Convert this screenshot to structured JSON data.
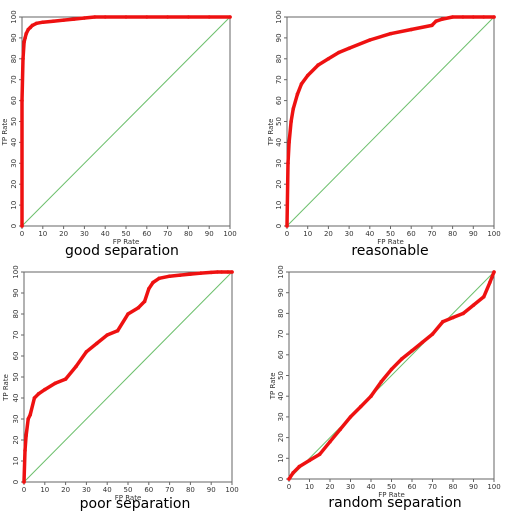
{
  "chart_data": [
    {
      "type": "line",
      "caption": "good separation",
      "xlabel": "FP Rate",
      "ylabel": "TP Rate",
      "xlim": [
        0,
        100
      ],
      "ylim": [
        0,
        100
      ],
      "x_ticks": [
        0,
        10,
        20,
        30,
        40,
        50,
        60,
        70,
        80,
        90,
        100
      ],
      "y_ticks": [
        0,
        10,
        20,
        30,
        40,
        50,
        60,
        70,
        80,
        90,
        100
      ],
      "diagonal_color": "#6cbf6c",
      "series": [
        {
          "color": "#ee1111",
          "x": [
            0,
            0,
            0.5,
            1,
            1.5,
            2,
            3,
            4,
            5,
            7,
            10,
            15,
            20,
            25,
            30,
            35,
            40,
            50,
            60,
            70,
            80,
            90,
            100
          ],
          "y": [
            0,
            60,
            80,
            88,
            90,
            92,
            94,
            95,
            96,
            97,
            97.5,
            98,
            98.5,
            99,
            99.5,
            100,
            100,
            100,
            100,
            100,
            100,
            100,
            100
          ]
        }
      ]
    },
    {
      "type": "line",
      "caption": "reasonable",
      "xlabel": "FP Rate",
      "ylabel": "TP Rate",
      "xlim": [
        0,
        100
      ],
      "ylim": [
        0,
        100
      ],
      "x_ticks": [
        0,
        10,
        20,
        30,
        40,
        50,
        60,
        70,
        80,
        90,
        100
      ],
      "y_ticks": [
        0,
        10,
        20,
        30,
        40,
        50,
        60,
        70,
        80,
        90,
        100
      ],
      "diagonal_color": "#6cbf6c",
      "series": [
        {
          "color": "#ee1111",
          "x": [
            0,
            0.5,
            1,
            2,
            3,
            5,
            7,
            10,
            15,
            20,
            25,
            30,
            40,
            50,
            60,
            70,
            72,
            75,
            80,
            85,
            90,
            95,
            100
          ],
          "y": [
            0,
            30,
            40,
            50,
            56,
            63,
            68,
            72,
            77,
            80,
            83,
            85,
            89,
            92,
            94,
            96,
            98,
            99,
            100,
            100,
            100,
            100,
            100
          ]
        }
      ]
    },
    {
      "type": "line",
      "caption": "poor separation",
      "xlabel": "FP Rate",
      "ylabel": "TP Rate",
      "xlim": [
        0,
        100
      ],
      "ylim": [
        0,
        100
      ],
      "x_ticks": [
        0,
        10,
        20,
        30,
        40,
        50,
        60,
        70,
        80,
        90,
        100
      ],
      "y_ticks": [
        0,
        10,
        20,
        30,
        40,
        50,
        60,
        70,
        80,
        90,
        100
      ],
      "diagonal_color": "#6cbf6c",
      "series": [
        {
          "color": "#ee1111",
          "x": [
            0,
            0.5,
            1,
            2,
            3,
            5,
            7,
            10,
            15,
            20,
            25,
            30,
            35,
            40,
            45,
            50,
            55,
            58,
            60,
            62,
            65,
            70,
            75,
            80,
            85,
            90,
            93,
            95,
            98,
            100
          ],
          "y": [
            0,
            15,
            22,
            30,
            32,
            40,
            42,
            44,
            47,
            49,
            55,
            62,
            66,
            70,
            72,
            80,
            83,
            86,
            92,
            95,
            97,
            98,
            98.5,
            99,
            99.5,
            99.8,
            100,
            100,
            100,
            100
          ]
        }
      ]
    },
    {
      "type": "line",
      "caption": "random separation",
      "xlabel": "FP Rate",
      "ylabel": "TP Rate",
      "xlim": [
        0,
        100
      ],
      "ylim": [
        0,
        100
      ],
      "x_ticks": [
        0,
        10,
        20,
        30,
        40,
        50,
        60,
        70,
        80,
        90,
        100
      ],
      "y_ticks": [
        0,
        10,
        20,
        30,
        40,
        50,
        60,
        70,
        80,
        90,
        100
      ],
      "diagonal_color": "#6cbf6c",
      "series": [
        {
          "color": "#ee1111",
          "x": [
            0,
            2,
            5,
            10,
            15,
            20,
            25,
            30,
            35,
            40,
            45,
            50,
            55,
            60,
            65,
            70,
            75,
            80,
            85,
            90,
            95,
            98,
            100
          ],
          "y": [
            0,
            3,
            6,
            9,
            12,
            18,
            24,
            30,
            35,
            40,
            47,
            53,
            58,
            62,
            66,
            70,
            76,
            78,
            80,
            84,
            88,
            95,
            100
          ]
        }
      ]
    }
  ]
}
